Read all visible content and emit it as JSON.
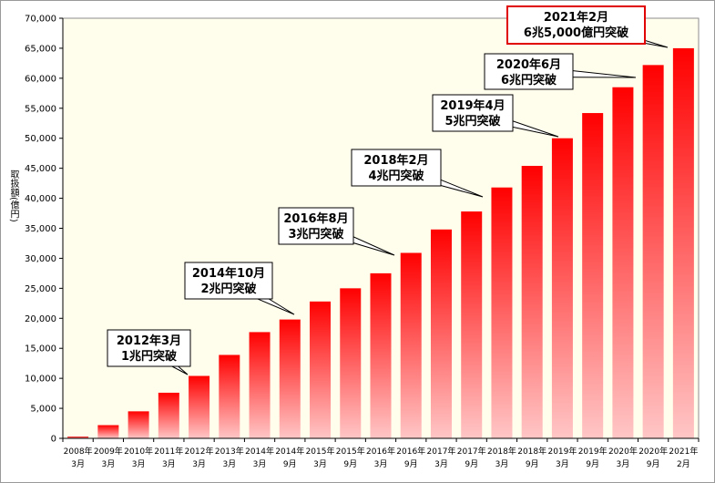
{
  "chart_data": {
    "type": "bar",
    "ylabel": "取扱額(億円)",
    "ylim": [
      0,
      70000
    ],
    "yticks": [
      0,
      5000,
      10000,
      15000,
      20000,
      25000,
      30000,
      35000,
      40000,
      45000,
      50000,
      55000,
      60000,
      65000,
      70000
    ],
    "ytick_labels": [
      "0",
      "5,000",
      "10,000",
      "15,000",
      "20,000",
      "25,000",
      "30,000",
      "35,000",
      "40,000",
      "45,000",
      "50,000",
      "55,000",
      "60,000",
      "65,000",
      "70,000"
    ],
    "grid": false,
    "plot_background": "#fffdeb",
    "bar_color_top": "#ff0000",
    "bar_color_bottom": "#ffc6c6",
    "categories": [
      [
        "2008年",
        "3月"
      ],
      [
        "2009年",
        "3月"
      ],
      [
        "2010年",
        "3月"
      ],
      [
        "2011年",
        "3月"
      ],
      [
        "2012年",
        "3月"
      ],
      [
        "2013年",
        "3月"
      ],
      [
        "2014年",
        "3月"
      ],
      [
        "2014年",
        "9月"
      ],
      [
        "2015年",
        "3月"
      ],
      [
        "2015年",
        "9月"
      ],
      [
        "2016年",
        "3月"
      ],
      [
        "2016年",
        "9月"
      ],
      [
        "2017年",
        "3月"
      ],
      [
        "2017年",
        "9月"
      ],
      [
        "2018年",
        "3月"
      ],
      [
        "2018年",
        "9月"
      ],
      [
        "2019年",
        "3月"
      ],
      [
        "2019年",
        "9月"
      ],
      [
        "2020年",
        "3月"
      ],
      [
        "2020年",
        "9月"
      ],
      [
        "2021年",
        "2月"
      ]
    ],
    "values": [
      300,
      2200,
      4500,
      7600,
      10400,
      13900,
      17700,
      19800,
      22800,
      25000,
      27500,
      30900,
      34800,
      37800,
      41800,
      45400,
      50000,
      54200,
      58500,
      62200,
      65000
    ],
    "annotations": [
      {
        "lines": [
          "2012年3月",
          "1兆円突破"
        ],
        "bar_index": 4,
        "highlight": false
      },
      {
        "lines": [
          "2014年10月",
          "2兆円突破"
        ],
        "bar_index": 7,
        "highlight": false
      },
      {
        "lines": [
          "2016年8月",
          "3兆円突破"
        ],
        "bar_index": 11,
        "highlight": false
      },
      {
        "lines": [
          "2018年2月",
          "4兆円突破"
        ],
        "bar_index": 14,
        "highlight": false
      },
      {
        "lines": [
          "2019年4月",
          "5兆円突破"
        ],
        "bar_index": 16,
        "highlight": false
      },
      {
        "lines": [
          "2020年6月",
          "6兆円突破"
        ],
        "bar_index": 19,
        "highlight": false
      },
      {
        "lines": [
          "2021年2月",
          "6兆5,000億円突破"
        ],
        "bar_index": 20,
        "highlight": true
      }
    ]
  }
}
